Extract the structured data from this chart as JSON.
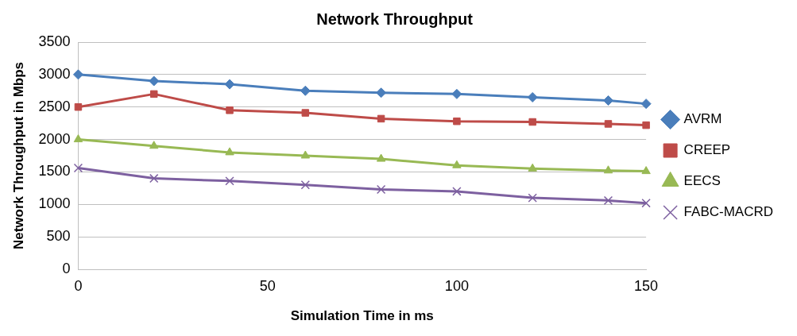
{
  "chart_data": {
    "type": "line",
    "title": "Network Throughput",
    "xlabel": "Simulation Time in ms",
    "ylabel": "Network Throughput in Mbps",
    "x": [
      0,
      20,
      40,
      60,
      80,
      100,
      120,
      140,
      150
    ],
    "xlim": [
      0,
      150
    ],
    "xticks": [
      0,
      50,
      100,
      150
    ],
    "ylim": [
      0,
      3500
    ],
    "yticks": [
      0,
      500,
      1000,
      1500,
      2000,
      2500,
      3000,
      3500
    ],
    "grid": "y",
    "legend": "right",
    "line_style": "solid",
    "series": [
      {
        "name": "AVRM",
        "color": "#4a7ebb",
        "marker": "diamond",
        "values": [
          3000,
          2900,
          2850,
          2750,
          2720,
          2700,
          2650,
          2600,
          2550
        ]
      },
      {
        "name": "CREEP",
        "color": "#be4b48",
        "marker": "square",
        "values": [
          2500,
          2700,
          2450,
          2410,
          2320,
          2280,
          2270,
          2240,
          2220
        ]
      },
      {
        "name": "EECS",
        "color": "#98b954",
        "marker": "triangle",
        "values": [
          2000,
          1900,
          1800,
          1750,
          1700,
          1600,
          1550,
          1520,
          1510
        ]
      },
      {
        "name": "FABC-MACRD",
        "color": "#7d60a0",
        "marker": "cross",
        "values": [
          1560,
          1400,
          1360,
          1300,
          1230,
          1200,
          1100,
          1060,
          1020
        ]
      }
    ]
  }
}
